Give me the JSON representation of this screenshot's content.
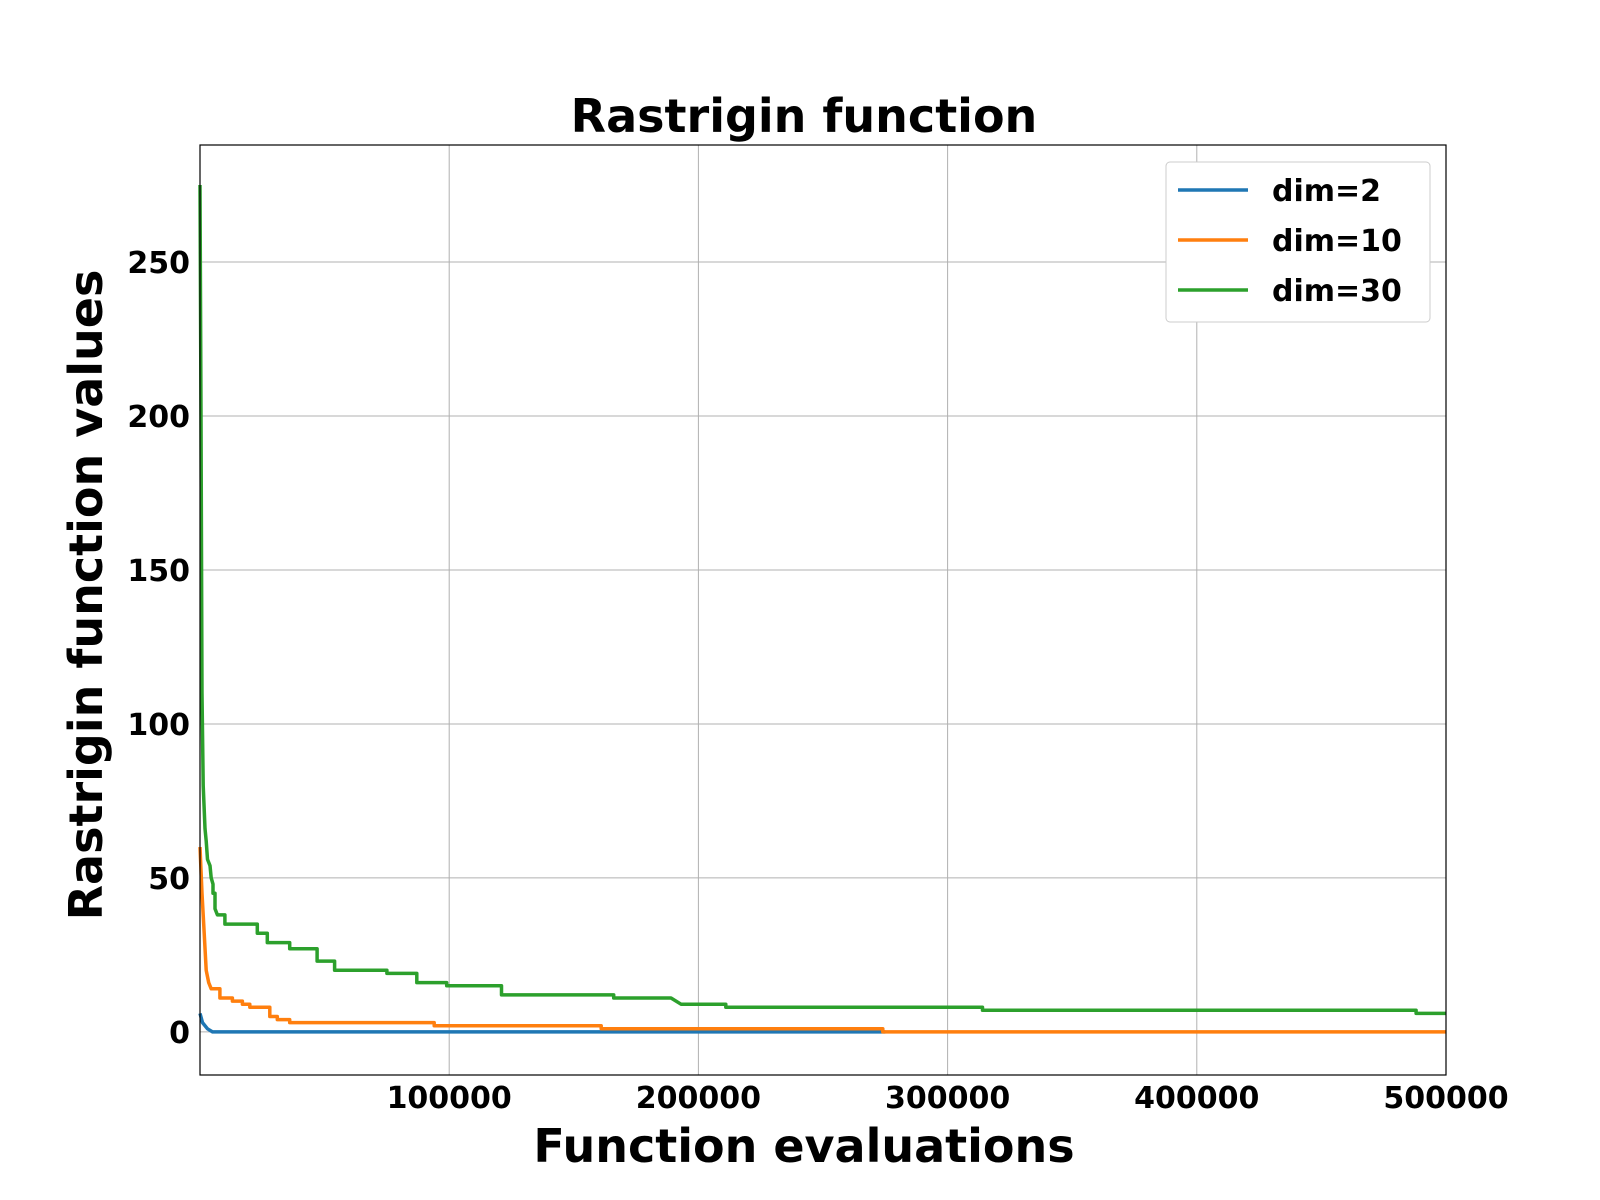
{
  "chart_data": {
    "type": "line",
    "title": "Rastrigin function",
    "xlabel": "Function evaluations",
    "ylabel": "Rastrigin function values",
    "xlim": [
      0,
      500000
    ],
    "ylim": [
      -14,
      288
    ],
    "xticks": [
      100000,
      200000,
      300000,
      400000,
      500000
    ],
    "yticks": [
      0,
      50,
      100,
      150,
      200,
      250
    ],
    "grid": true,
    "legend_position": "top-right",
    "series": [
      {
        "name": "dim=2",
        "color": "#1f77b4",
        "points": [
          [
            0,
            6
          ],
          [
            1000,
            3
          ],
          [
            3000,
            1
          ],
          [
            5000,
            0
          ],
          [
            275000,
            0
          ]
        ]
      },
      {
        "name": "dim=10",
        "color": "#ff7f0e",
        "points": [
          [
            0,
            60
          ],
          [
            800,
            45
          ],
          [
            1500,
            35
          ],
          [
            2500,
            20
          ],
          [
            3500,
            16
          ],
          [
            4500,
            14
          ],
          [
            8000,
            14
          ],
          [
            8000,
            11
          ],
          [
            13000,
            11
          ],
          [
            13000,
            10
          ],
          [
            17000,
            10
          ],
          [
            17000,
            9
          ],
          [
            20000,
            9
          ],
          [
            20000,
            8
          ],
          [
            28000,
            8
          ],
          [
            28000,
            5
          ],
          [
            31000,
            5
          ],
          [
            31000,
            4
          ],
          [
            36000,
            4
          ],
          [
            36000,
            3
          ],
          [
            94000,
            3
          ],
          [
            94000,
            2
          ],
          [
            161000,
            2
          ],
          [
            161000,
            1
          ],
          [
            274000,
            1
          ],
          [
            274000,
            0
          ],
          [
            500000,
            0
          ]
        ]
      },
      {
        "name": "dim=30",
        "color": "#2ca02c",
        "points": [
          [
            0,
            275
          ],
          [
            400,
            200
          ],
          [
            800,
            110
          ],
          [
            1300,
            80
          ],
          [
            2000,
            66
          ],
          [
            2500,
            62
          ],
          [
            3000,
            56
          ],
          [
            4000,
            54
          ],
          [
            4500,
            50
          ],
          [
            5200,
            48
          ],
          [
            5200,
            45
          ],
          [
            6000,
            45
          ],
          [
            6000,
            40
          ],
          [
            7000,
            38
          ],
          [
            10000,
            38
          ],
          [
            10000,
            35
          ],
          [
            23000,
            35
          ],
          [
            23000,
            32
          ],
          [
            27000,
            32
          ],
          [
            27000,
            29
          ],
          [
            36000,
            29
          ],
          [
            36000,
            27
          ],
          [
            47000,
            27
          ],
          [
            47000,
            23
          ],
          [
            54000,
            23
          ],
          [
            54000,
            20
          ],
          [
            75000,
            20
          ],
          [
            75000,
            19
          ],
          [
            87000,
            19
          ],
          [
            87000,
            16
          ],
          [
            99000,
            16
          ],
          [
            99000,
            15
          ],
          [
            121000,
            15
          ],
          [
            121000,
            12
          ],
          [
            166000,
            12
          ],
          [
            166000,
            11
          ],
          [
            189000,
            11
          ],
          [
            193000,
            9
          ],
          [
            211000,
            9
          ],
          [
            211000,
            8
          ],
          [
            314000,
            8
          ],
          [
            314000,
            7
          ],
          [
            488000,
            7
          ],
          [
            488000,
            6
          ],
          [
            500000,
            6
          ]
        ]
      }
    ]
  }
}
